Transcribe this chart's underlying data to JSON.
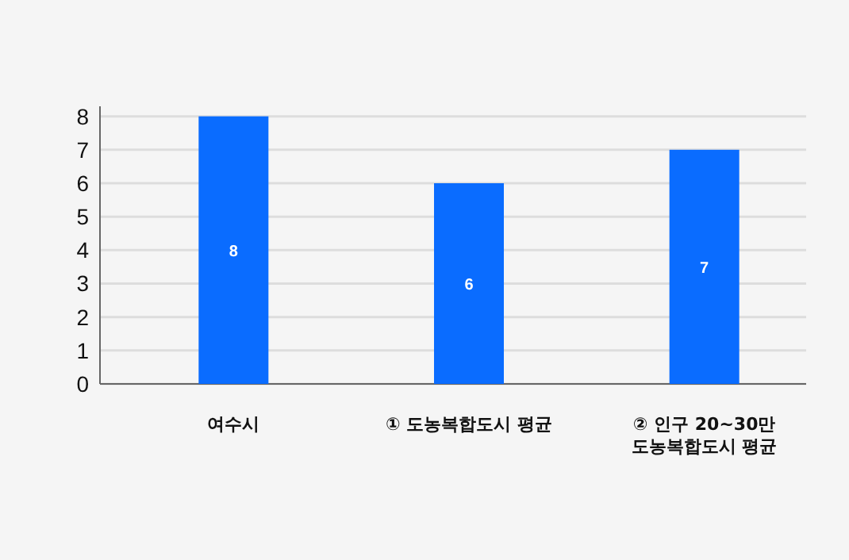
{
  "chart_data": {
    "type": "bar",
    "categories": [
      "여수시",
      "① 도농복합도시 평균",
      "② 인구 20~30만\n도농복합도시 평균"
    ],
    "series": [
      {
        "color": "#0a6cff",
        "values": [
          8,
          6,
          7
        ]
      }
    ],
    "ylim": [
      0,
      8.3
    ],
    "yticks": [
      0,
      1,
      2,
      3,
      4,
      5,
      6,
      7,
      8
    ],
    "grid": "y",
    "data_labels": true
  }
}
